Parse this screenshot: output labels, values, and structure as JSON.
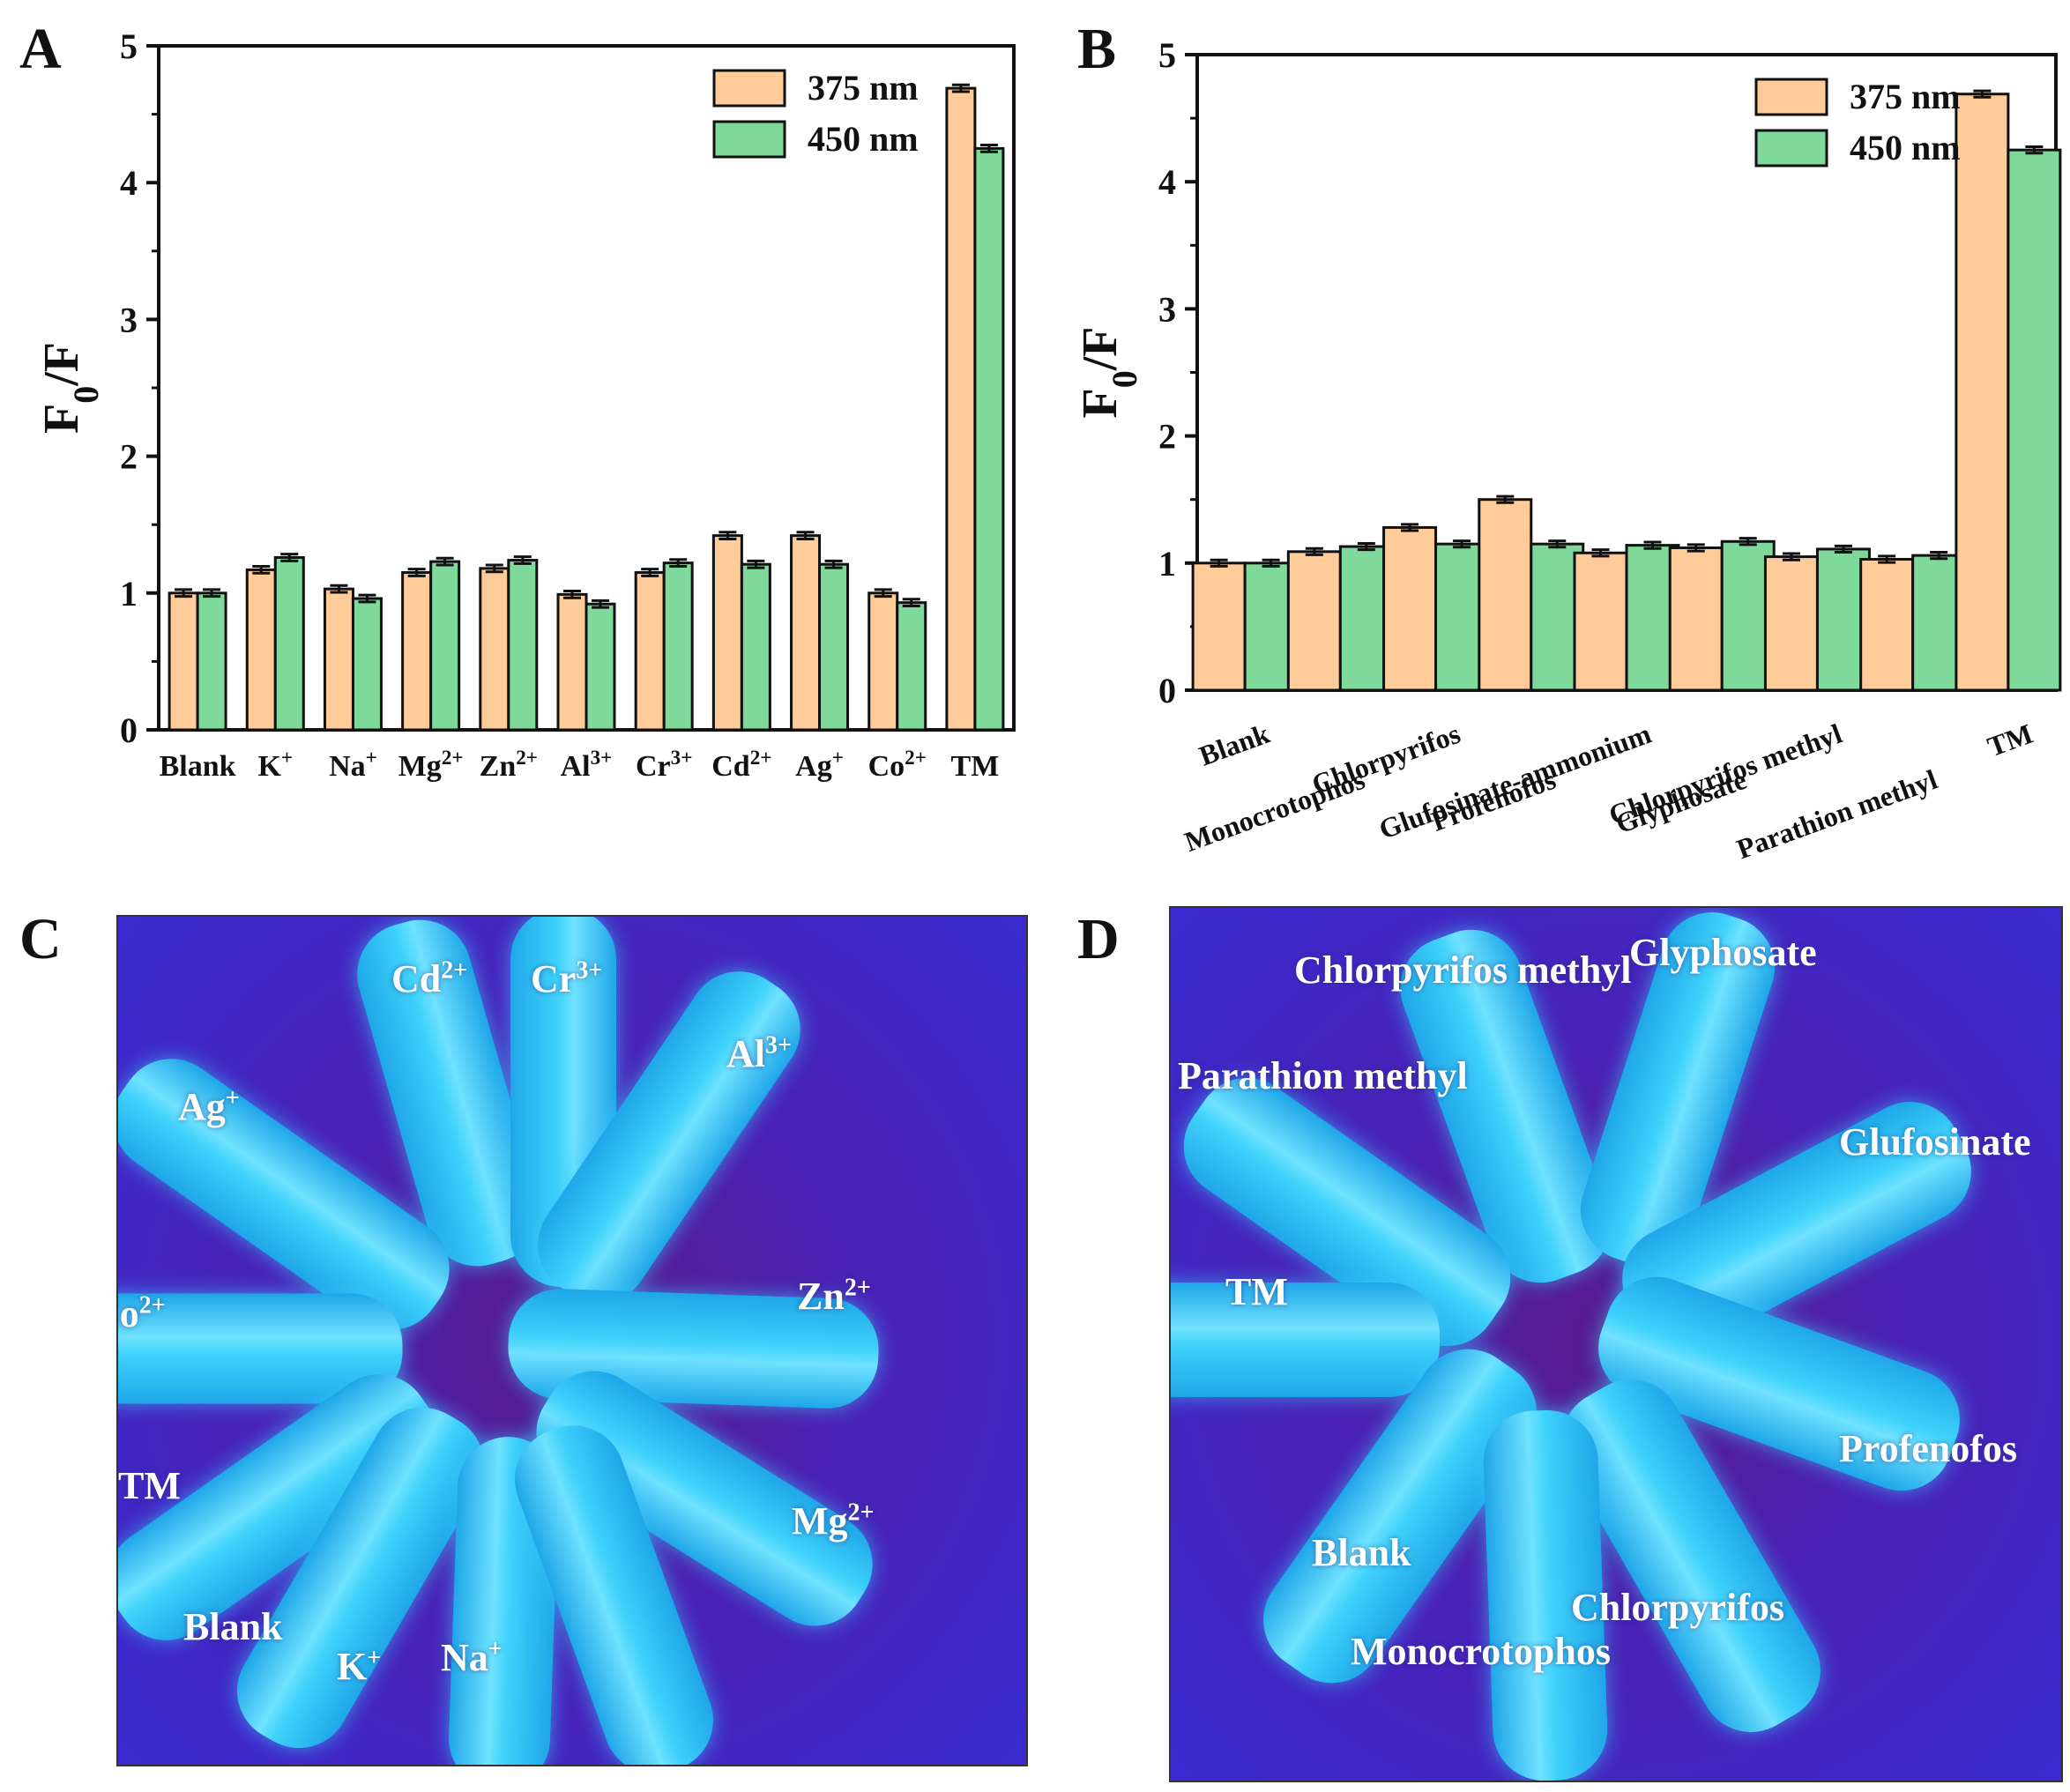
{
  "panels": {
    "a_letter": "A",
    "b_letter": "B",
    "c_letter": "C",
    "d_letter": "D"
  },
  "colors": {
    "series_375": "#FFCC99",
    "series_450": "#7FD99A",
    "photo_bg": "#4a22b8",
    "tube": "#2ec4f5"
  },
  "chart_data": [
    {
      "type": "bar",
      "panel": "A",
      "ylabel_main": "F",
      "ylabel_sub": "0",
      "ylabel_tail": "/F",
      "ylim": [
        0,
        5
      ],
      "yticks": [
        "0",
        "1",
        "2",
        "3",
        "4",
        "5"
      ],
      "categories": [
        {
          "base": "Blank",
          "sup": ""
        },
        {
          "base": "K",
          "sup": "+"
        },
        {
          "base": "Na",
          "sup": "+"
        },
        {
          "base": "Mg",
          "sup": "2+"
        },
        {
          "base": "Zn",
          "sup": "2+"
        },
        {
          "base": "Al",
          "sup": "3+"
        },
        {
          "base": "Cr",
          "sup": "3+"
        },
        {
          "base": "Cd",
          "sup": "2+"
        },
        {
          "base": "Ag",
          "sup": "+"
        },
        {
          "base": "Co",
          "sup": "2+"
        },
        {
          "base": "TM",
          "sup": ""
        }
      ],
      "series": [
        {
          "name": "375 nm",
          "values": [
            1.0,
            1.17,
            1.03,
            1.15,
            1.18,
            0.99,
            1.15,
            1.42,
            1.42,
            1.0,
            4.69
          ]
        },
        {
          "name": "450 nm",
          "values": [
            1.0,
            1.26,
            0.96,
            1.23,
            1.24,
            0.92,
            1.22,
            1.21,
            1.21,
            0.93,
            4.25
          ]
        }
      ],
      "legend_position": "top-right"
    },
    {
      "type": "bar",
      "panel": "B",
      "ylabel_main": "F",
      "ylabel_sub": "0",
      "ylabel_tail": "/F",
      "ylim": [
        0,
        5
      ],
      "yticks": [
        "0",
        "1",
        "2",
        "3",
        "4",
        "5"
      ],
      "categories": [
        {
          "base": "Blank",
          "sup": ""
        },
        {
          "base": "Monocrotophos",
          "sup": ""
        },
        {
          "base": "Chlorpyrifos",
          "sup": ""
        },
        {
          "base": "Profenofos",
          "sup": ""
        },
        {
          "base": "Glufosinate-ammonium",
          "sup": ""
        },
        {
          "base": "Glyphosate",
          "sup": ""
        },
        {
          "base": "Chlorpyrifos methyl",
          "sup": ""
        },
        {
          "base": "Parathion methyl",
          "sup": ""
        },
        {
          "base": "TM",
          "sup": ""
        }
      ],
      "series": [
        {
          "name": "375 nm",
          "values": [
            1.0,
            1.09,
            1.28,
            1.5,
            1.08,
            1.12,
            1.05,
            1.03,
            4.69
          ]
        },
        {
          "name": "450 nm",
          "values": [
            1.0,
            1.13,
            1.15,
            1.15,
            1.14,
            1.17,
            1.11,
            1.06,
            4.25
          ]
        }
      ],
      "legend_position": "top-right"
    }
  ],
  "photo_c": {
    "labels": [
      {
        "base": "Cd",
        "sup": "2+"
      },
      {
        "base": "Cr",
        "sup": "3+"
      },
      {
        "base": "Al",
        "sup": "3+"
      },
      {
        "base": "Ag",
        "sup": "+"
      },
      {
        "base": "Co",
        "sup": "2+"
      },
      {
        "base": "Zn",
        "sup": "2+"
      },
      {
        "base": "TM",
        "sup": ""
      },
      {
        "base": "Mg",
        "sup": "2+"
      },
      {
        "base": "Blank",
        "sup": ""
      },
      {
        "base": "K",
        "sup": "+"
      },
      {
        "base": "Na",
        "sup": "+"
      }
    ]
  },
  "photo_d": {
    "labels": [
      {
        "base": "Chlorpyrifos methyl",
        "sup": ""
      },
      {
        "base": "Glyphosate",
        "sup": ""
      },
      {
        "base": "Parathion methyl",
        "sup": ""
      },
      {
        "base": "Glufosinate",
        "sup": ""
      },
      {
        "base": "TM",
        "sup": ""
      },
      {
        "base": "Profenofos",
        "sup": ""
      },
      {
        "base": "Blank",
        "sup": ""
      },
      {
        "base": "Chlorpyrifos",
        "sup": ""
      },
      {
        "base": "Monocrotophos",
        "sup": ""
      }
    ]
  }
}
